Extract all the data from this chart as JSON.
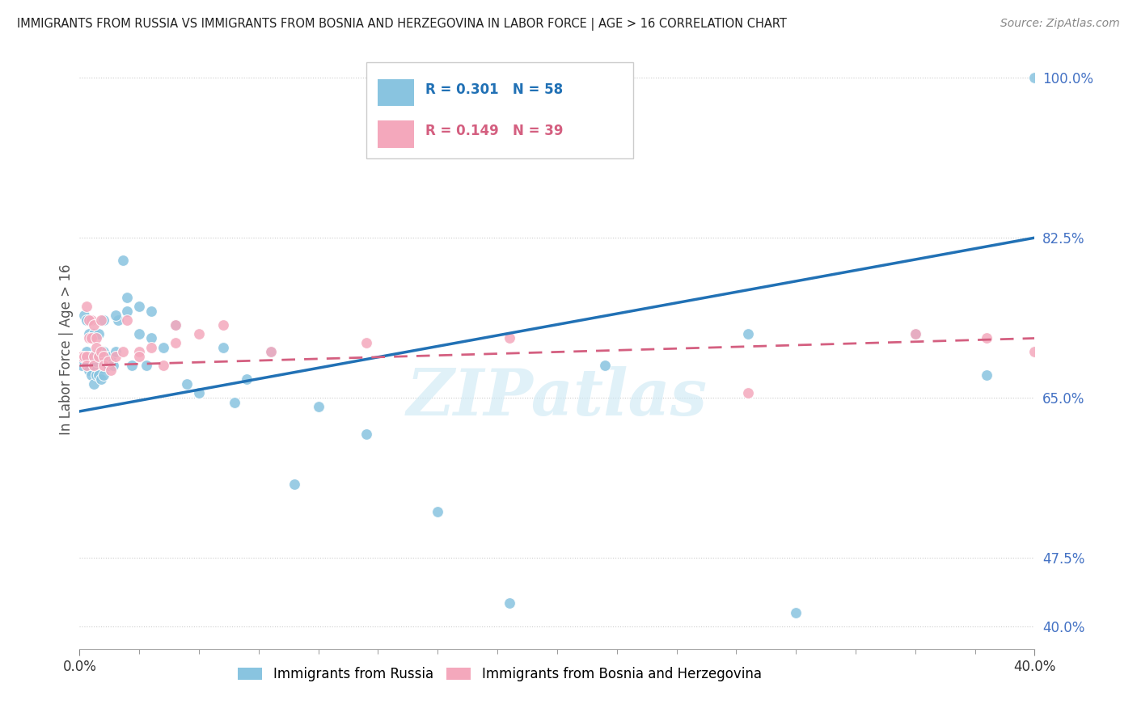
{
  "title": "IMMIGRANTS FROM RUSSIA VS IMMIGRANTS FROM BOSNIA AND HERZEGOVINA IN LABOR FORCE | AGE > 16 CORRELATION CHART",
  "source": "Source: ZipAtlas.com",
  "ylabel": "In Labor Force | Age > 16",
  "x_min": 0.0,
  "x_max": 0.4,
  "y_min": 0.375,
  "y_max": 1.03,
  "r_russia": 0.301,
  "n_russia": 58,
  "r_bosnia": 0.149,
  "n_bosnia": 39,
  "color_russia": "#89c4e0",
  "color_bosnia": "#f4a8bc",
  "trend_color_russia": "#2171b5",
  "trend_color_bosnia": "#d45f80",
  "watermark": "ZIPatlas",
  "legend_label_russia": "Immigrants from Russia",
  "legend_label_bosnia": "Immigrants from Bosnia and Herzegovina",
  "russia_trend_x0": 0.0,
  "russia_trend_y0": 0.635,
  "russia_trend_x1": 0.4,
  "russia_trend_y1": 0.825,
  "bosnia_trend_x0": 0.0,
  "bosnia_trend_y0": 0.685,
  "bosnia_trend_x1": 0.4,
  "bosnia_trend_y1": 0.715,
  "russia_x": [
    0.001,
    0.002,
    0.003,
    0.004,
    0.004,
    0.005,
    0.005,
    0.006,
    0.006,
    0.007,
    0.007,
    0.008,
    0.008,
    0.009,
    0.009,
    0.01,
    0.01,
    0.011,
    0.012,
    0.013,
    0.014,
    0.015,
    0.016,
    0.018,
    0.02,
    0.022,
    0.025,
    0.028,
    0.03,
    0.035,
    0.04,
    0.045,
    0.05,
    0.06,
    0.065,
    0.07,
    0.08,
    0.09,
    0.1,
    0.12,
    0.15,
    0.18,
    0.22,
    0.28,
    0.3,
    0.35,
    0.38,
    0.4,
    0.002,
    0.003,
    0.004,
    0.006,
    0.008,
    0.01,
    0.015,
    0.02,
    0.025,
    0.03
  ],
  "russia_y": [
    0.685,
    0.69,
    0.7,
    0.695,
    0.68,
    0.695,
    0.675,
    0.685,
    0.665,
    0.69,
    0.675,
    0.695,
    0.675,
    0.695,
    0.67,
    0.7,
    0.675,
    0.695,
    0.685,
    0.695,
    0.685,
    0.7,
    0.735,
    0.8,
    0.745,
    0.685,
    0.72,
    0.685,
    0.715,
    0.705,
    0.73,
    0.665,
    0.655,
    0.705,
    0.645,
    0.67,
    0.7,
    0.555,
    0.64,
    0.61,
    0.525,
    0.425,
    0.685,
    0.72,
    0.415,
    0.72,
    0.675,
    1.0,
    0.74,
    0.735,
    0.72,
    0.72,
    0.72,
    0.735,
    0.74,
    0.76,
    0.75,
    0.745
  ],
  "bosnia_x": [
    0.001,
    0.002,
    0.003,
    0.003,
    0.004,
    0.005,
    0.005,
    0.006,
    0.006,
    0.007,
    0.007,
    0.008,
    0.009,
    0.01,
    0.01,
    0.012,
    0.013,
    0.015,
    0.018,
    0.02,
    0.025,
    0.03,
    0.035,
    0.04,
    0.05,
    0.06,
    0.08,
    0.12,
    0.18,
    0.28,
    0.35,
    0.38,
    0.4,
    0.003,
    0.004,
    0.006,
    0.009,
    0.025,
    0.04
  ],
  "bosnia_y": [
    0.695,
    0.695,
    0.695,
    0.685,
    0.715,
    0.735,
    0.715,
    0.695,
    0.685,
    0.715,
    0.705,
    0.695,
    0.7,
    0.695,
    0.685,
    0.69,
    0.68,
    0.695,
    0.7,
    0.735,
    0.7,
    0.705,
    0.685,
    0.71,
    0.72,
    0.73,
    0.7,
    0.71,
    0.715,
    0.655,
    0.72,
    0.715,
    0.7,
    0.75,
    0.735,
    0.73,
    0.735,
    0.695,
    0.73
  ]
}
